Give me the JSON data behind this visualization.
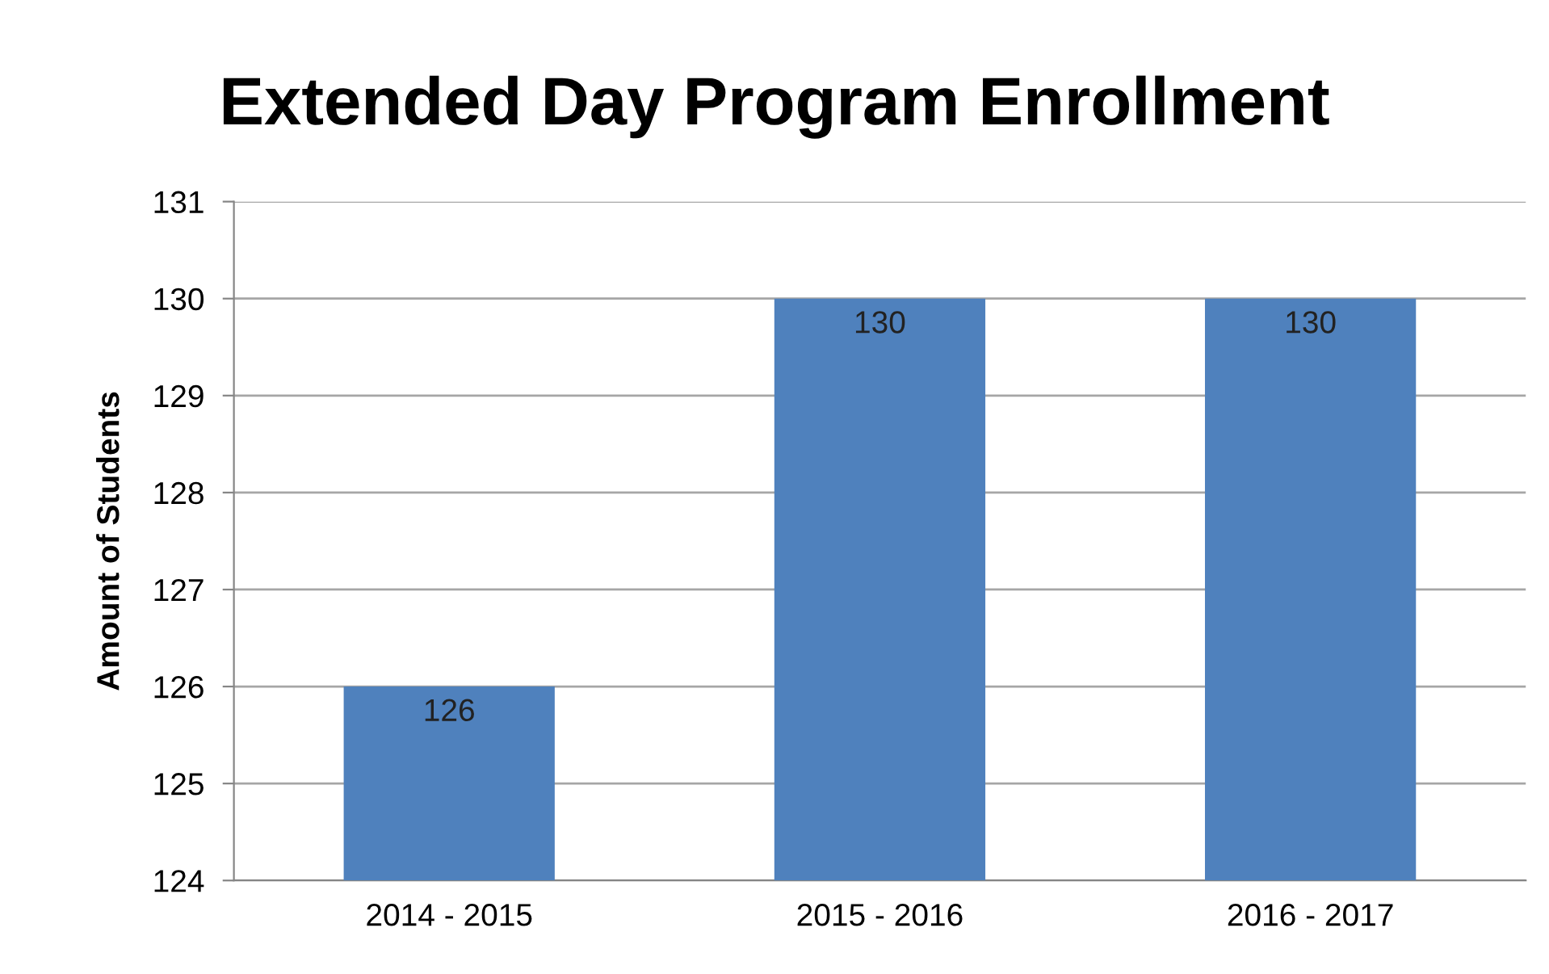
{
  "chart_data": {
    "type": "bar",
    "title": "Extended Day Program Enrollment",
    "ylabel": "Amount of Students",
    "categories": [
      "2014 - 2015",
      "2015 - 2016",
      "2016 - 2017"
    ],
    "values": [
      126,
      130,
      130
    ],
    "color": "#4f81bd",
    "ylim": [
      124,
      131
    ],
    "yticks": [
      124,
      125,
      126,
      127,
      128,
      129,
      130,
      131
    ],
    "grid": "y",
    "data_labels": true
  }
}
